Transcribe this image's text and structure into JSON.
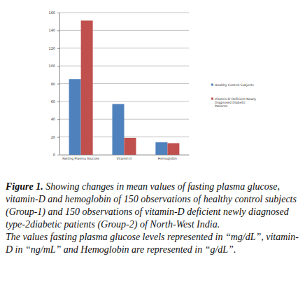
{
  "chart_data": {
    "type": "bar",
    "categories": [
      "Fasting Plasma Glucose",
      "Vitamin D",
      "Hemoglobin"
    ],
    "series": [
      {
        "name": "Healthy Control Subjects",
        "color": "#4f81bd",
        "values": [
          85,
          57,
          14
        ]
      },
      {
        "name": "Vitamin-D Deficient Newly Diagnosed Diabetic Patients",
        "color": "#c0504d",
        "values": [
          151,
          19,
          13
        ]
      }
    ],
    "ylim": [
      0,
      160
    ],
    "yticks": [
      0,
      20,
      40,
      60,
      80,
      100,
      120,
      140,
      160
    ],
    "grid": true,
    "legend": "right",
    "caption": {
      "label": "Figure 1.",
      "text": "Showing changes in mean values of fasting plasma glucose, vitamin-D and hemoglobin of 150 observations of healthy control subjects (Group-1) and 150 observations of vitamin-D deficient newly diagnosed type-2diabetic patients (Group-2) of North-West India.",
      "note": "The values fasting plasma glucose levels represented in “mg/dL”, vitamin-D in “ng/mL” and Hemoglobin are represented in “g/dL”."
    }
  }
}
